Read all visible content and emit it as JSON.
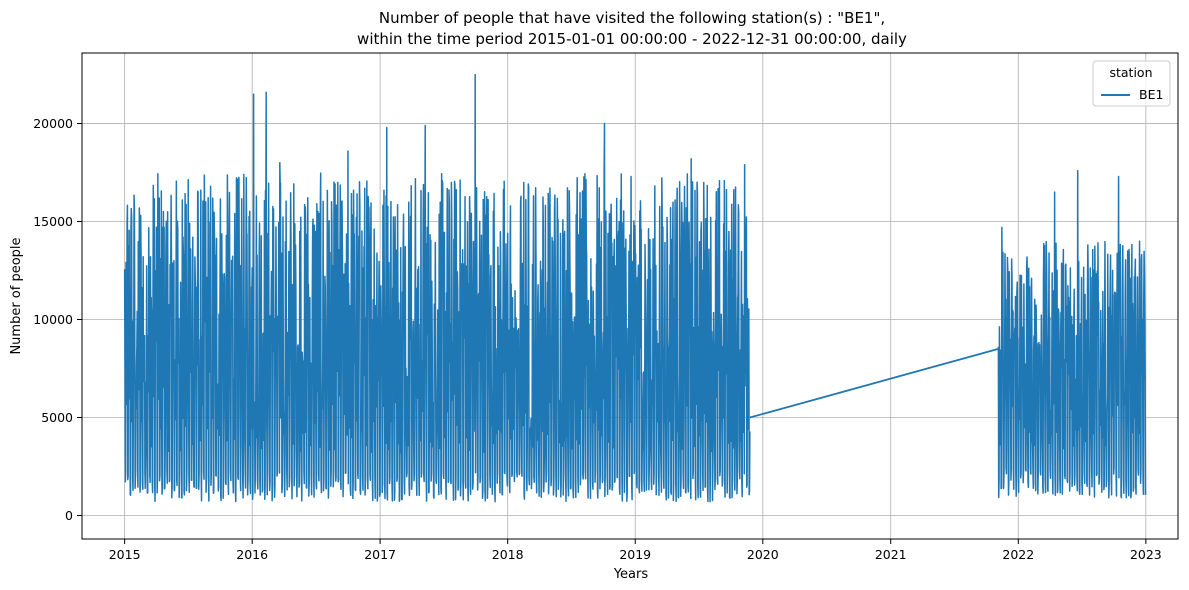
{
  "chart_data": {
    "type": "line",
    "title_line1": "Number of people that have visited the following station(s) : \"BE1\",",
    "title_line2": "within the time period 2015-01-01 00:00:00 - 2022-12-31 00:00:00, daily",
    "xlabel": "Years",
    "ylabel": "Number of people",
    "x_ticks": [
      "2015",
      "2016",
      "2017",
      "2018",
      "2019",
      "2020",
      "2021",
      "2022",
      "2023"
    ],
    "y_ticks": [
      0,
      5000,
      10000,
      15000,
      20000
    ],
    "xlim": [
      "2014-09-01",
      "2023-04-03"
    ],
    "ylim": [
      -1200,
      23600
    ],
    "grid": true,
    "legend": {
      "title": "station",
      "placement": "top-right"
    },
    "color": "#1f77b4",
    "series": [
      {
        "name": "BE1",
        "segments": [
          {
            "start": "2015-01-01",
            "end": "2019-11-25",
            "low": 700,
            "high": 17500,
            "peaks": [
              {
                "date": "2015-01-08",
                "value": 14800
              },
              {
                "date": "2015-04-10",
                "value": 16200
              },
              {
                "date": "2015-06-15",
                "value": 16100
              },
              {
                "date": "2016-01-05",
                "value": 21500
              },
              {
                "date": "2016-02-10",
                "value": 21600
              },
              {
                "date": "2016-03-20",
                "value": 18000
              },
              {
                "date": "2016-10-01",
                "value": 18600
              },
              {
                "date": "2017-01-20",
                "value": 19800
              },
              {
                "date": "2017-05-10",
                "value": 19900
              },
              {
                "date": "2017-09-30",
                "value": 22500
              },
              {
                "date": "2018-10-05",
                "value": 20000
              },
              {
                "date": "2019-06-10",
                "value": 18200
              },
              {
                "date": "2019-11-10",
                "value": 17900
              }
            ]
          },
          {
            "start": "2021-11-05",
            "end": "2022-12-31",
            "low": 900,
            "high": 14000,
            "peaks": [
              {
                "date": "2021-11-15",
                "value": 14700
              },
              {
                "date": "2022-04-15",
                "value": 16500
              },
              {
                "date": "2022-06-20",
                "value": 17600
              },
              {
                "date": "2022-10-15",
                "value": 17300
              }
            ]
          }
        ],
        "gap_line": [
          {
            "date": "2019-11-25",
            "value": 5000
          },
          {
            "date": "2021-11-05",
            "value": 8500
          }
        ]
      }
    ]
  }
}
